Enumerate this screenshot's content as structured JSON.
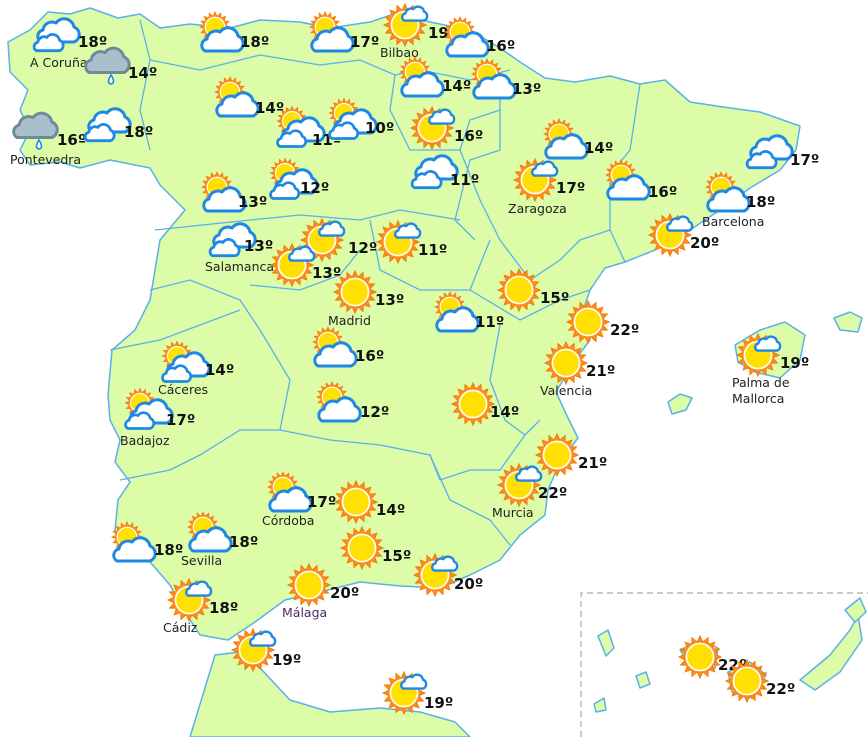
{
  "map": {
    "land_color": "#dcfca8",
    "border_color": "#5bb0ec",
    "cloud_stroke": "#1e88e5",
    "sun_color": "#ffe000",
    "sun_rays": "#f57c00",
    "rain_cloud": "#a9bfcb"
  },
  "stations": [
    {
      "city": "A Coruña",
      "temp": "18º",
      "icon": "cloudy"
    },
    {
      "city": "",
      "temp": "14º",
      "icon": "rain"
    },
    {
      "city": "Pontevedra",
      "temp": "16º",
      "icon": "rain"
    },
    {
      "city": "",
      "temp": "18º",
      "icon": "cloudy"
    },
    {
      "city": "",
      "temp": "18º",
      "icon": "partly-cloudy"
    },
    {
      "city": "",
      "temp": "17º",
      "icon": "partly-cloudy"
    },
    {
      "city": "Bilbao",
      "temp": "19º",
      "icon": "sun-small-cloud"
    },
    {
      "city": "",
      "temp": "16º",
      "icon": "partly-cloudy"
    },
    {
      "city": "",
      "temp": "14º",
      "icon": "partly-cloudy"
    },
    {
      "city": "",
      "temp": "13º",
      "icon": "partly-cloudy"
    },
    {
      "city": "",
      "temp": "14º",
      "icon": "partly-cloudy"
    },
    {
      "city": "",
      "temp": "11º",
      "icon": "sun-clouds"
    },
    {
      "city": "",
      "temp": "10º",
      "icon": "sun-clouds"
    },
    {
      "city": "",
      "temp": "16º",
      "icon": "sun-small-cloud"
    },
    {
      "city": "",
      "temp": "11º",
      "icon": "cloudy"
    },
    {
      "city": "",
      "temp": "12º",
      "icon": "sun-clouds"
    },
    {
      "city": "",
      "temp": "13º",
      "icon": "partly-cloudy"
    },
    {
      "city": "Salamanca",
      "temp": "13º",
      "icon": "cloudy"
    },
    {
      "city": "",
      "temp": "12º",
      "icon": "sun-small-cloud"
    },
    {
      "city": "",
      "temp": "13º",
      "icon": "sun-small-cloud"
    },
    {
      "city": "",
      "temp": "11º",
      "icon": "sun-small-cloud"
    },
    {
      "city": "Madrid",
      "temp": "13º",
      "icon": "sun"
    },
    {
      "city": "",
      "temp": "11º",
      "icon": "partly-cloudy"
    },
    {
      "city": "Zaragoza",
      "temp": "17º",
      "icon": "sun-small-cloud"
    },
    {
      "city": "",
      "temp": "14º",
      "icon": "partly-cloudy"
    },
    {
      "city": "",
      "temp": "16º",
      "icon": "partly-cloudy"
    },
    {
      "city": "",
      "temp": "17º",
      "icon": "cloudy"
    },
    {
      "city": "Barcelona",
      "temp": "18º",
      "icon": "partly-cloudy"
    },
    {
      "city": "",
      "temp": "20º",
      "icon": "sun-small-cloud"
    },
    {
      "city": "",
      "temp": "15º",
      "icon": "sun"
    },
    {
      "city": "",
      "temp": "22º",
      "icon": "sun"
    },
    {
      "city": "Valencia",
      "temp": "21º",
      "icon": "sun"
    },
    {
      "city": "Palma de",
      "city2": "Mallorca",
      "temp": "19º",
      "icon": "sun-small-cloud"
    },
    {
      "city": "Cáceres",
      "temp": "14º",
      "icon": "sun-clouds"
    },
    {
      "city": "Badajoz",
      "temp": "17º",
      "icon": "sun-clouds"
    },
    {
      "city": "",
      "temp": "16º",
      "icon": "partly-cloudy"
    },
    {
      "city": "",
      "temp": "12º",
      "icon": "partly-cloudy"
    },
    {
      "city": "",
      "temp": "14º",
      "icon": "sun"
    },
    {
      "city": "",
      "temp": "21º",
      "icon": "sun"
    },
    {
      "city": "Murcia",
      "temp": "22º",
      "icon": "sun-small-cloud"
    },
    {
      "city": "Córdoba",
      "temp": "17º",
      "icon": "partly-cloudy"
    },
    {
      "city": "",
      "temp": "14º",
      "icon": "sun"
    },
    {
      "city": "",
      "temp": "18º",
      "icon": "partly-cloudy"
    },
    {
      "city": "Sevilla",
      "temp": "18º",
      "icon": "partly-cloudy"
    },
    {
      "city": "",
      "temp": "15º",
      "icon": "sun"
    },
    {
      "city": "Cádiz",
      "temp": "18º",
      "icon": "sun-small-cloud"
    },
    {
      "city": "Málaga",
      "temp": "20º",
      "icon": "sun"
    },
    {
      "city": "",
      "temp": "20º",
      "icon": "sun-small-cloud"
    },
    {
      "city": "",
      "temp": "19º",
      "icon": "sun-small-cloud"
    },
    {
      "city": "",
      "temp": "19º",
      "icon": "sun-small-cloud"
    },
    {
      "city": "",
      "temp": "22º",
      "icon": "sun"
    },
    {
      "city": "",
      "temp": "22º",
      "icon": "sun"
    }
  ]
}
